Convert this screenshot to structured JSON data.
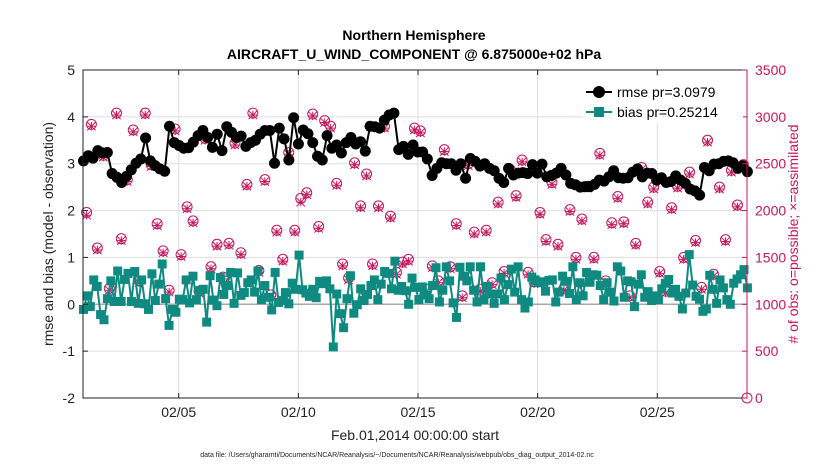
{
  "chart_data": {
    "type": "line",
    "title": "Northern Hemisphere",
    "subtitle": "AIRCRAFT_U_WIND_COMPONENT @ 6.875000e+02 hPa",
    "xlabel": "Feb.01,2014 00:00:00 start",
    "ylabel_left": "rmse and bias (model - observation)",
    "ylabel_right": "# of obs: o=possible; ×=assimilated",
    "footnote": "data file: /Users/gharamti/Documents/NCAR/Reanalysis/~/Documents/NCAR/Reanalysis/webpub/obs_diag_output_2014-02.nc",
    "x_unit": "day of February 2014 (fractional)",
    "xlim": [
      1.0,
      28.75
    ],
    "ylim_left": [
      -2,
      5
    ],
    "ylim_right": [
      0,
      3500
    ],
    "x_ticks": [
      5,
      10,
      15,
      20,
      25
    ],
    "x_tick_labels": [
      "02/05",
      "02/10",
      "02/15",
      "02/20",
      "02/25"
    ],
    "y_ticks_left": [
      -2,
      -1,
      0,
      1,
      2,
      3,
      4,
      5
    ],
    "y_tick_labels_left": [
      "-2",
      "-1",
      "0",
      "1",
      "2",
      "3",
      "4",
      "5"
    ],
    "y_ticks_right": [
      0,
      500,
      1000,
      1500,
      2000,
      2500,
      3000,
      3500
    ],
    "y_tick_labels_right": [
      "0",
      "500",
      "1000",
      "1500",
      "2000",
      "2500",
      "3000",
      "3500"
    ],
    "grid": true,
    "legend_position": "top-right",
    "colors": {
      "rmse": "#000000",
      "bias": "#0f8a80",
      "obs": "#c0185e",
      "grid": "#dddddd",
      "zero_line": "#a8a8a8"
    },
    "series": [
      {
        "name": "rmse pr=3.0979",
        "marker": "circle",
        "values": [
          3.06,
          3.17,
          3.12,
          3.28,
          3.23,
          3.24,
          2.79,
          2.71,
          2.6,
          2.73,
          2.87,
          3.01,
          3.1,
          3.55,
          3.06,
          2.96,
          2.89,
          2.84,
          3.8,
          3.45,
          3.39,
          3.33,
          3.34,
          3.46,
          3.6,
          3.71,
          3.56,
          3.35,
          3.63,
          3.28,
          3.79,
          3.67,
          3.56,
          3.59,
          3.37,
          3.45,
          3.5,
          3.63,
          3.71,
          3.71,
          3.01,
          3.76,
          3.53,
          3.08,
          3.98,
          3.42,
          3.72,
          3.64,
          3.45,
          3.16,
          3.08,
          3.6,
          3.33,
          3.4,
          3.23,
          3.45,
          3.56,
          3.42,
          3.47,
          3.27,
          3.8,
          3.79,
          3.76,
          3.93,
          4.04,
          4.08,
          3.3,
          3.37,
          3.2,
          3.4,
          3.25,
          3.25,
          3.1,
          2.75,
          2.9,
          3.02,
          3.0,
          3.0,
          2.86,
          3.0,
          2.69,
          3.11,
          3.05,
          2.95,
          3.0,
          2.9,
          2.85,
          2.69,
          2.6,
          2.9,
          2.76,
          2.8,
          2.81,
          2.79,
          2.98,
          2.8,
          2.99,
          2.72,
          2.75,
          2.8,
          2.9,
          2.76,
          2.58,
          2.55,
          2.5,
          2.51,
          2.51,
          2.56,
          2.65,
          2.63,
          2.72,
          2.85,
          2.7,
          2.69,
          2.7,
          2.82,
          2.89,
          2.72,
          2.8,
          2.79,
          2.65,
          2.7,
          2.6,
          2.62,
          2.74,
          2.65,
          2.58,
          2.46,
          2.42,
          2.33,
          2.92,
          2.85,
          2.99,
          3.0,
          3.05,
          3.06,
          3.02,
          2.9,
          2.96,
          2.83
        ]
      },
      {
        "name": "bias pr=0.25214",
        "marker": "square",
        "values": [
          -0.11,
          0.18,
          -0.05,
          0.52,
          0.38,
          -0.22,
          -0.33,
          0.12,
          0.5,
          0.06,
          0.71,
          0.06,
          0.53,
          0.66,
          0.06,
          0.7,
          0.02,
          0.52,
          0.01,
          -0.11,
          0.65,
          0.08,
          0.43,
          0.86,
          0.12,
          -0.45,
          -0.11,
          -0.17,
          0.11,
          0.1,
          0.52,
          0.03,
          0.6,
          0.1,
          0.29,
          0.32,
          -0.38,
          0.61,
          0.09,
          -0.03,
          0.57,
          0.21,
          0.4,
          0.68,
          0.02,
          0.67,
          0.19,
          0.25,
          0.46,
          0.52,
          0.26,
          0.71,
          0.1,
          0.4,
          0.15,
          -0.12,
          0.68,
          0.04,
          0.08,
          0.25,
          0.01,
          0.45,
          0.32,
          1.05,
          0.31,
          0.24,
          0.17,
          0.32,
          0.14,
          0.49,
          0.44,
          0.5,
          0.33,
          -0.91,
          0.22,
          -0.2,
          -0.5,
          0.12,
          0.61,
          -0.19,
          -0.01,
          0.33,
          0.08,
          0.21,
          0.4,
          0.52,
          0.1,
          0.43,
          0.7,
          0.66,
          0.33,
          0.92,
          0.3,
          0.38,
          0.29,
          0.0,
          0.56,
          0.36,
          0.1,
          0.37,
          0.2,
          0.12,
          0.4,
          0.78,
          0.05,
          0.3,
          0.8,
          0.5,
          0.03,
          -0.28,
          0.79,
          0.6,
          0.5,
          0.8,
          0.3,
          0.05,
          0.8,
          0.1,
          0.38,
          0.22,
          0.02,
          0.22,
          0.56,
          0.1,
          0.42,
          0.75,
          0.26,
          0.8,
          0.1,
          -0.08,
          0.05,
          0.58,
          0.52,
          0.46,
          0.48,
          0.28,
          0.51,
          0.52,
          0.05,
          0.26,
          0.6,
          0.49,
          0.23,
          0.8,
          0.1,
          0.46,
          0.18,
          0.68,
          0.47,
          0.63,
          0.62,
          0.4,
          0.1,
          0.46,
          0.26,
          0.07,
          0.8,
          0.71,
          0.15,
          0.5,
          0.48,
          -0.05,
          0.43,
          0.63,
          0.15,
          0.27,
          0.08,
          0.18,
          0.1,
          0.33,
          0.45,
          0.53,
          0.24,
          0.32,
          0.17,
          -0.1,
          0.24,
          1.06,
          0.41,
          0.17,
          0.11,
          -0.15,
          -0.1,
          0.62,
          0.32,
          0.02,
          0.52,
          0.35,
          0.1,
          0.0,
          0.45,
          0.54,
          0.63,
          0.74,
          0.35
        ]
      }
    ],
    "obs": {
      "name": "# of obs",
      "axis": "right",
      "x": [
        1.15,
        1.35,
        1.6,
        1.85,
        2.1,
        2.4,
        2.6,
        2.85,
        3.1,
        3.35,
        3.6,
        3.85,
        4.1,
        4.35,
        4.6,
        4.85,
        5.1,
        5.35,
        5.6,
        5.85,
        6.1,
        6.35,
        6.6,
        6.85,
        7.1,
        7.35,
        7.6,
        7.85,
        8.1,
        8.35,
        8.6,
        8.85,
        9.1,
        9.35,
        9.6,
        9.85,
        10.1,
        10.35,
        10.6,
        10.85,
        11.1,
        11.35,
        11.6,
        11.85,
        12.1,
        12.35,
        12.6,
        12.85,
        13.1,
        13.35,
        13.6,
        13.85,
        14.1,
        14.35,
        14.6,
        14.85,
        15.1,
        15.35,
        15.6,
        15.85,
        16.1,
        16.35,
        16.6,
        16.85,
        17.1,
        17.35,
        17.6,
        17.85,
        18.1,
        18.35,
        18.6,
        18.85,
        19.1,
        19.35,
        19.6,
        19.85,
        20.1,
        20.35,
        20.6,
        20.85,
        21.1,
        21.35,
        21.6,
        21.85,
        22.1,
        22.35,
        22.6,
        22.85,
        23.1,
        23.35,
        23.6,
        23.85,
        24.1,
        24.35,
        24.6,
        24.85,
        25.1,
        25.35,
        25.6,
        25.85,
        26.1,
        26.35,
        26.6,
        26.85,
        27.1,
        27.35,
        27.6,
        27.85,
        28.1,
        28.35,
        28.6
      ],
      "possible": [
        1980,
        2920,
        1600,
        2590,
        1170,
        3040,
        1700,
        2330,
        2860,
        1250,
        3040,
        2490,
        1860,
        1570,
        1150,
        2870,
        1530,
        2040,
        1890,
        1140,
        2770,
        1400,
        1640,
        1290,
        1650,
        2720,
        1550,
        2280,
        3040,
        1360,
        2330,
        1100,
        1790,
        1480,
        2620,
        1790,
        2130,
        2190,
        3030,
        1830,
        2960,
        2900,
        2290,
        1430,
        1280,
        2510,
        2050,
        2390,
        1430,
        2050,
        2900,
        1940,
        1340,
        1450,
        1480,
        2880,
        2850,
        1160,
        1410,
        1250,
        2650,
        1400,
        1860,
        1090,
        2500,
        1770,
        1160,
        1790,
        1230,
        2090,
        1350,
        2440,
        2160,
        2540,
        1340,
        1240,
        1980,
        1690,
        2300,
        1640,
        1170,
        2010,
        1500,
        1910,
        2260,
        1500,
        2610,
        1250,
        1870,
        2150,
        1880,
        1090,
        1650,
        2460,
        2090,
        2250,
        1350,
        1140,
        2030,
        2260,
        1500,
        2410,
        1680,
        1180,
        2750,
        1320,
        2250,
        1690,
        2430,
        2060,
        2490
      ],
      "assimilated": [
        1950,
        2900,
        1580,
        2570,
        1150,
        3020,
        1680,
        2310,
        2840,
        1230,
        3020,
        2470,
        1840,
        1550,
        1130,
        2850,
        1510,
        2020,
        1870,
        1120,
        2750,
        1380,
        1620,
        1270,
        1630,
        2700,
        1530,
        2260,
        3020,
        1340,
        2310,
        1080,
        1770,
        1460,
        2600,
        1770,
        2090,
        2170,
        3010,
        1810,
        2940,
        2880,
        2270,
        1410,
        1260,
        2490,
        2030,
        2370,
        1410,
        2030,
        2880,
        1920,
        1320,
        1430,
        1460,
        2860,
        2830,
        1140,
        1390,
        1230,
        2630,
        1380,
        1840,
        1070,
        2480,
        1750,
        1140,
        1770,
        1210,
        2070,
        1330,
        2420,
        2140,
        2520,
        1320,
        1220,
        1960,
        1670,
        2280,
        1620,
        1150,
        1990,
        1480,
        1890,
        2240,
        1480,
        2590,
        1230,
        1850,
        2130,
        1860,
        1070,
        1630,
        2440,
        2070,
        2230,
        1330,
        1120,
        2010,
        2240,
        1480,
        2390,
        1660,
        1160,
        2730,
        1300,
        2230,
        1670,
        2410,
        2040,
        2470
      ]
    }
  }
}
